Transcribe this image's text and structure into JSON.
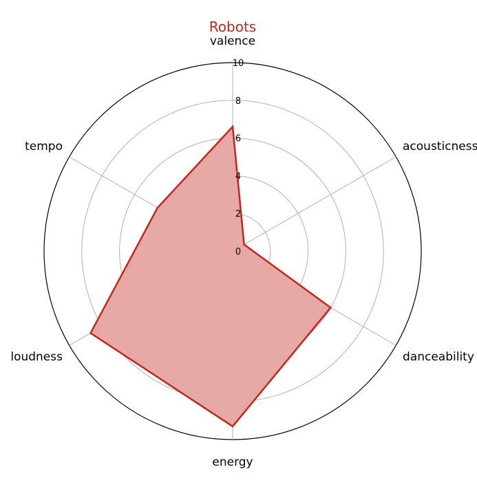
{
  "chart_data": {
    "type": "radar",
    "title": "Robots",
    "axes": [
      "valence",
      "acousticness",
      "danceability",
      "energy",
      "loudness",
      "tempo"
    ],
    "rlim": [
      0,
      10
    ],
    "rticks": [
      "0",
      "2",
      "4",
      "6",
      "8",
      "10"
    ],
    "series": [
      {
        "values": [
          6.6,
          0.7,
          6.0,
          9.3,
          8.7,
          4.6
        ]
      }
    ],
    "grid": true,
    "colors": {
      "line": "#c3261b",
      "fill": "#e6a8a4",
      "grid": "#b0b0b0",
      "frame": "#000000"
    }
  }
}
